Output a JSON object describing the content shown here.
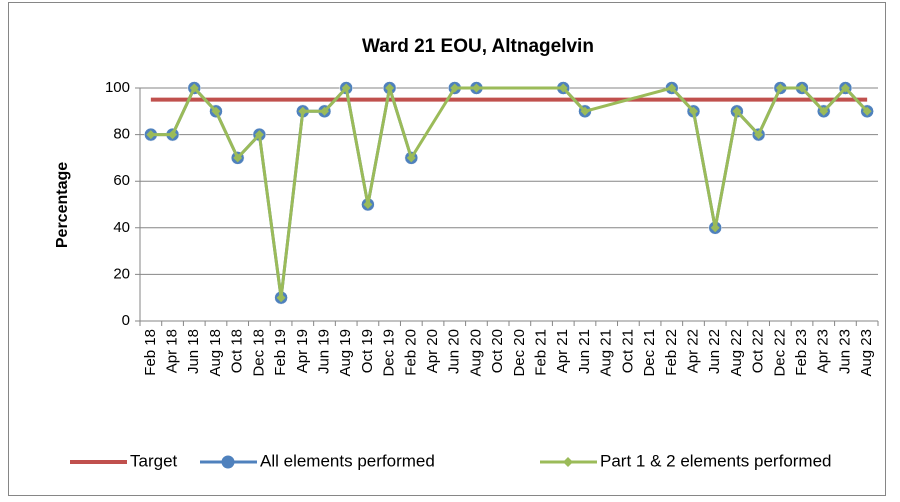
{
  "chart_data": {
    "type": "line",
    "title": "Ward 21 EOU, Altnagelvin",
    "ylabel": "Percentage",
    "categories": [
      "Feb 18",
      "Apr 18",
      "Jun 18",
      "Aug 18",
      "Oct 18",
      "Dec 18",
      "Feb 19",
      "Apr 19",
      "Jun 19",
      "Aug 19",
      "Oct 19",
      "Dec 19",
      "Feb 20",
      "Apr 20",
      "Jun 20",
      "Aug 20",
      "Oct 20",
      "Dec 20",
      "Feb 21",
      "Apr 21",
      "Jun 21",
      "Aug 21",
      "Oct 21",
      "Dec 21",
      "Feb 22",
      "Apr 22",
      "Jun 22",
      "Aug 22",
      "Oct 22",
      "Dec 22",
      "Feb 23",
      "Apr 23",
      "Jun 23",
      "Aug 23"
    ],
    "series": [
      {
        "name": "Target",
        "color": "#c0504d",
        "marker": "none",
        "values": [
          95,
          95,
          95,
          95,
          95,
          95,
          95,
          95,
          95,
          95,
          95,
          95,
          95,
          95,
          95,
          95,
          95,
          95,
          95,
          95,
          95,
          95,
          95,
          95,
          95,
          95,
          95,
          95,
          95,
          95,
          95,
          95,
          95,
          95
        ]
      },
      {
        "name": "All elements performed",
        "color": "#4f81bd",
        "marker": "circle",
        "values": [
          80,
          80,
          100,
          90,
          70,
          80,
          10,
          90,
          90,
          100,
          50,
          100,
          70,
          null,
          100,
          100,
          null,
          null,
          null,
          100,
          90,
          null,
          null,
          null,
          100,
          90,
          40,
          90,
          80,
          100,
          100,
          90,
          100,
          90
        ]
      },
      {
        "name": "Part 1 & 2 elements performed",
        "color": "#9bbb59",
        "marker": "diamond",
        "connect_gaps": true,
        "values": [
          80,
          80,
          100,
          90,
          70,
          80,
          10,
          90,
          90,
          100,
          50,
          100,
          70,
          null,
          100,
          100,
          null,
          null,
          null,
          100,
          90,
          null,
          null,
          null,
          100,
          90,
          40,
          90,
          80,
          100,
          100,
          90,
          100,
          90
        ]
      }
    ],
    "ylim": [
      0,
      100
    ],
    "yticks": [
      0,
      20,
      40,
      60,
      80,
      100
    ],
    "grid": true,
    "legend": "bottom"
  }
}
